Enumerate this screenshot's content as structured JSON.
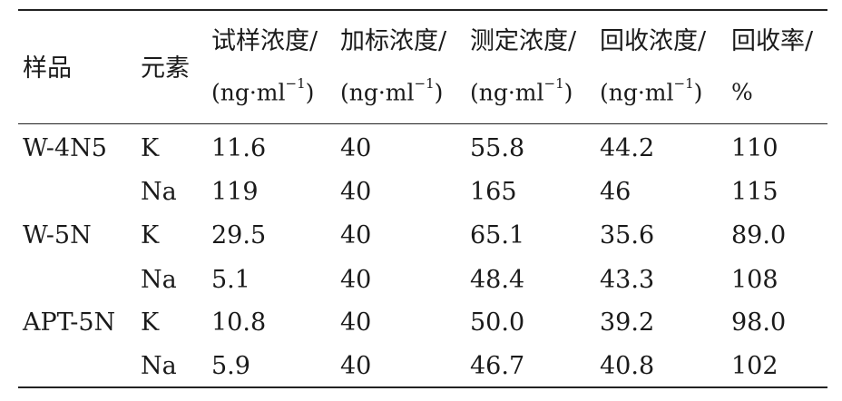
{
  "header": {
    "sample": "样品",
    "element": "元素",
    "c1_name": "试样浓度/",
    "c2_name": "加标浓度/",
    "c3_name": "测定浓度/",
    "c4_name": "回收浓度/",
    "c5_name": "回收率/",
    "unit_base": "(ng·ml",
    "unit_exp": "−1",
    "unit_close": ")",
    "c5_unit": "%"
  },
  "rows": [
    {
      "sample": "W-4N5",
      "element": "K",
      "c1": "11.6",
      "c2": "40",
      "c3": "55.8",
      "c4": "44.2",
      "c5": "110"
    },
    {
      "sample": "",
      "element": "Na",
      "c1": "119",
      "c2": "40",
      "c3": "165",
      "c4": "46",
      "c5": "115"
    },
    {
      "sample": "W-5N",
      "element": "K",
      "c1": "29.5",
      "c2": "40",
      "c3": "65.1",
      "c4": "35.6",
      "c5": "89.0"
    },
    {
      "sample": "",
      "element": "Na",
      "c1": "5.1",
      "c2": "40",
      "c3": "48.4",
      "c4": "43.3",
      "c5": "108"
    },
    {
      "sample": "APT-5N",
      "element": "K",
      "c1": "10.8",
      "c2": "40",
      "c3": "50.0",
      "c4": "39.2",
      "c5": "98.0"
    },
    {
      "sample": "",
      "element": "Na",
      "c1": "5.9",
      "c2": "40",
      "c3": "46.7",
      "c4": "40.8",
      "c5": "102"
    }
  ]
}
